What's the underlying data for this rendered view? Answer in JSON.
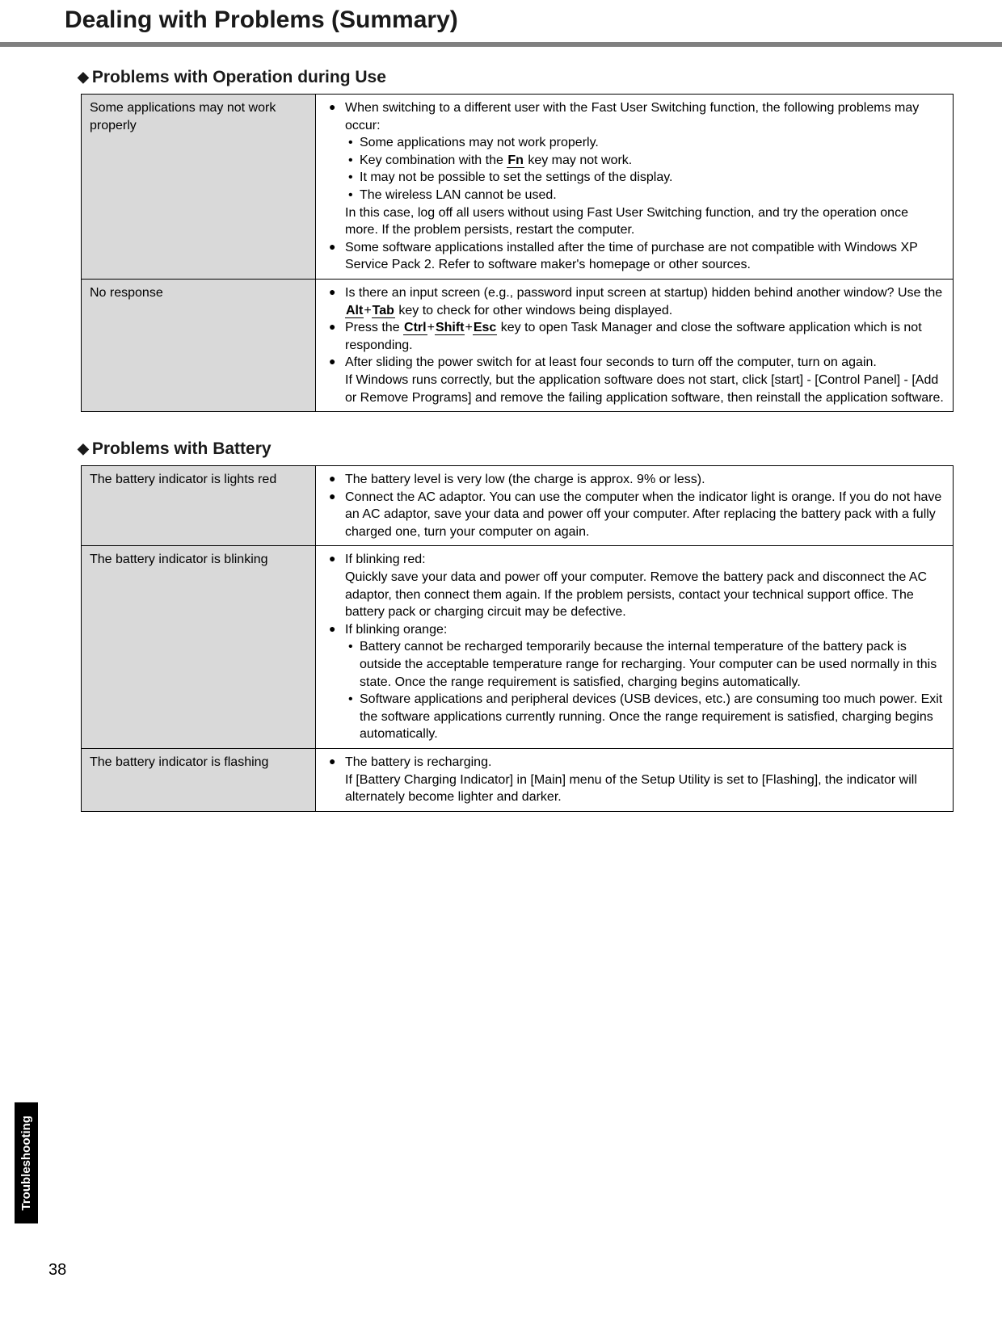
{
  "pageTitle": "Dealing with Problems (Summary)",
  "sideTab": "Troubleshooting",
  "pageNumber": "38",
  "section1": {
    "heading": "Problems with Operation during Use",
    "rows": [
      {
        "left": "Some applications may not work properly",
        "b1_intro": "When switching to a different user with the Fast User Switching function, the following problems may occur:",
        "b1_s1": "Some applications may not work properly.",
        "b1_s2_a": "Key combination with the ",
        "b1_s2_key": "Fn",
        "b1_s2_b": " key may not work.",
        "b1_s3": "It may not be possible to set the settings of the display.",
        "b1_s4": "The wireless LAN cannot be used.",
        "b1_cont": "In this case, log off all users without using Fast User Switching function, and try the operation once more. If the problem persists, restart the computer.",
        "b2": "Some software applications installed after the time of purchase are not compatible with Windows XP Service Pack 2. Refer to software maker's homepage or other sources."
      },
      {
        "left": "No response",
        "b1_a": "Is there an input screen (e.g., password input screen at startup) hidden behind another window?  Use the ",
        "b1_k1": "Alt",
        "b1_plus": "+",
        "b1_k2": "Tab",
        "b1_b": " key to check for other windows being displayed.",
        "b2_a": "Press the ",
        "b2_k1": "Ctrl",
        "b2_p1": "+",
        "b2_k2": "Shift",
        "b2_p2": "+",
        "b2_k3": "Esc",
        "b2_b": " key to open Task Manager and close the software application which is not responding.",
        "b3": "After sliding the power switch for at least four seconds to turn off the computer, turn on again.",
        "b3_cont": "If Windows runs correctly, but the application software does not start, click [start] - [Control Panel] - [Add or Remove Programs] and remove the failing application software, then reinstall the application software."
      }
    ]
  },
  "section2": {
    "heading": "Problems with Battery",
    "rows": [
      {
        "left": "The battery indicator is lights red",
        "b1": "The battery level is very low (the charge is approx. 9% or less).",
        "b2": "Connect the AC adaptor. You can use the computer when the indicator light is orange. If you do not have an AC adaptor, save your data and power off your computer. After replacing the battery pack with a fully charged one, turn your computer on again."
      },
      {
        "left": "The battery indicator is blinking",
        "b1_intro": "If blinking red:",
        "b1_cont": "Quickly save your data and power off your computer.  Remove the battery pack and disconnect the AC adaptor, then connect them again. If the problem persists, contact your technical support office. The battery pack or charging circuit may be defective.",
        "b2_intro": "If blinking orange:",
        "b2_s1": "Battery cannot be recharged temporarily because the internal temperature of the battery pack is outside the acceptable temperature range for recharging. Your computer can be used normally in this state. Once the range requirement is satisfied, charging begins automatically.",
        "b2_s2": "Software applications and peripheral devices (USB devices, etc.) are consuming too much power. Exit the software applications currently running. Once the range requirement is satisfied, charging begins automatically."
      },
      {
        "left": "The battery indicator is flashing",
        "b1": "The battery is recharging.",
        "b1_cont": "If [Battery Charging Indicator] in [Main] menu of the Setup Utility is set to [Flashing], the indicator will alternately become lighter and darker."
      }
    ]
  }
}
